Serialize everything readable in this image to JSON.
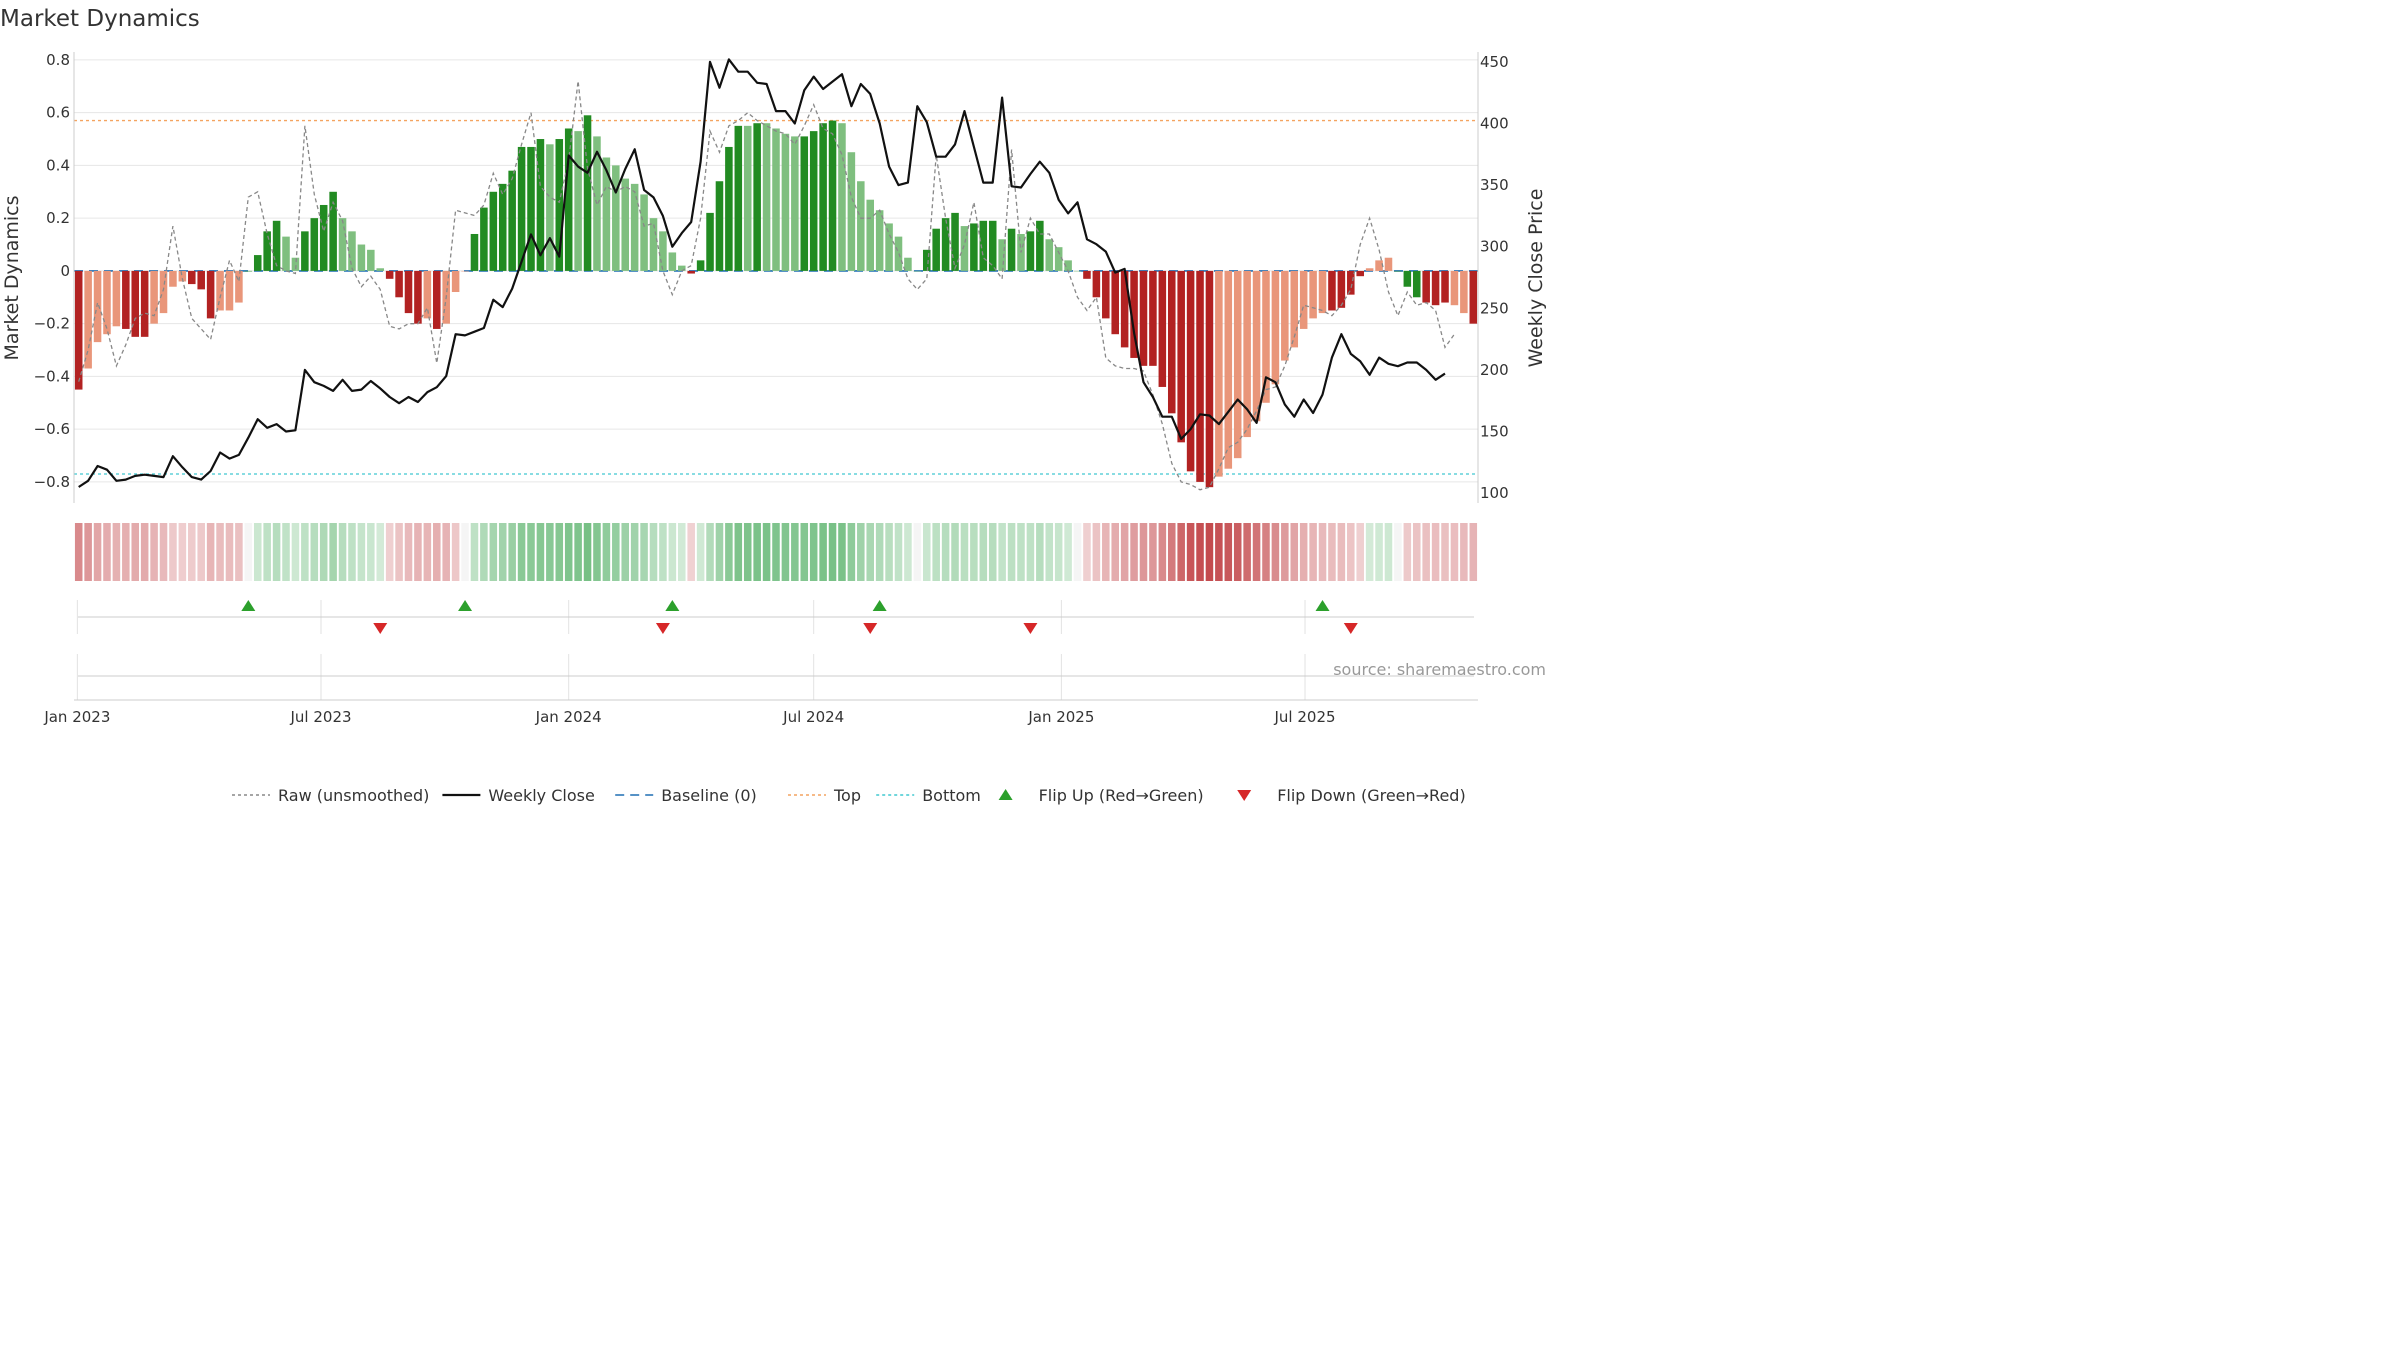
{
  "title": "Market Dynamics",
  "source": "source: sharemaestro.com",
  "colors": {
    "strong_green": "#228B22",
    "light_green": "#7FBF7F",
    "strong_red": "#B22222",
    "light_red": "#E9967A",
    "raw": "#888888",
    "close": "#111111",
    "baseline": "#1f6fb4",
    "top": "#F4A460",
    "bottom": "#40C8D0",
    "flip_up": "#2ca02c",
    "flip_down": "#d62728"
  },
  "chart_data": {
    "type": "bar",
    "x_start": "2023-01-02",
    "x_step_days": 7,
    "xtick_labels": [
      "Jan 2023",
      "Jul 2023",
      "Jan 2024",
      "Jul 2024",
      "Jan 2025",
      "Jul 2025"
    ],
    "xtick_dates": [
      "2023-01-01",
      "2023-07-01",
      "2024-01-01",
      "2024-07-01",
      "2025-01-01",
      "2025-07-01"
    ],
    "ylabel": "Market Dynamics",
    "y2label": "Weekly Close Price",
    "ylim": [
      -0.88,
      0.83
    ],
    "y2lim": [
      92,
      458
    ],
    "yticks": [
      "0.8",
      "0.6",
      "0.4",
      "0.2",
      "0",
      "−0.2",
      "−0.4",
      "−0.6",
      "−0.8"
    ],
    "y2ticks": [
      "450",
      "400",
      "350",
      "300",
      "250",
      "200",
      "150",
      "100"
    ],
    "top": 0.57,
    "bottom": -0.77,
    "baseline": 0,
    "grid": true,
    "legend_position": "bottom",
    "series": [
      {
        "name": "Market Dynamics",
        "values": [
          -0.45,
          -0.37,
          -0.27,
          -0.24,
          -0.21,
          -0.22,
          -0.25,
          -0.25,
          -0.2,
          -0.16,
          -0.06,
          -0.04,
          -0.05,
          -0.07,
          -0.18,
          -0.15,
          -0.15,
          -0.12,
          0,
          0.06,
          0.15,
          0.19,
          0.13,
          0.05,
          0.15,
          0.2,
          0.25,
          0.3,
          0.2,
          0.15,
          0.1,
          0.08,
          0.01,
          -0.03,
          -0.1,
          -0.16,
          -0.2,
          -0.18,
          -0.22,
          -0.2,
          -0.08,
          0,
          0.14,
          0.24,
          0.3,
          0.33,
          0.38,
          0.47,
          0.47,
          0.5,
          0.48,
          0.5,
          0.54,
          0.53,
          0.59,
          0.51,
          0.43,
          0.4,
          0.35,
          0.33,
          0.29,
          0.2,
          0.15,
          0.07,
          0.02,
          -0.01,
          0.04,
          0.22,
          0.34,
          0.47,
          0.55,
          0.55,
          0.56,
          0.56,
          0.54,
          0.52,
          0.51,
          0.51,
          0.53,
          0.56,
          0.57,
          0.56,
          0.45,
          0.34,
          0.27,
          0.23,
          0.18,
          0.13,
          0.05,
          0,
          0.08,
          0.16,
          0.2,
          0.22,
          0.17,
          0.18,
          0.19,
          0.19,
          0.12,
          0.16,
          0.14,
          0.15,
          0.19,
          0.12,
          0.09,
          0.04,
          0,
          -0.03,
          -0.1,
          -0.18,
          -0.24,
          -0.29,
          -0.33,
          -0.36,
          -0.36,
          -0.44,
          -0.54,
          -0.65,
          -0.76,
          -0.8,
          -0.82,
          -0.78,
          -0.75,
          -0.71,
          -0.63,
          -0.57,
          -0.5,
          -0.43,
          -0.34,
          -0.29,
          -0.22,
          -0.18,
          -0.16,
          -0.15,
          -0.14,
          -0.09,
          -0.02,
          0.01,
          0.04,
          0.05,
          0,
          -0.06,
          -0.1,
          -0.12,
          -0.13,
          -0.12,
          -0.13,
          -0.16,
          -0.2
        ],
        "colors": [
          "strong_red",
          "light_red",
          "light_red",
          "light_red",
          "light_red",
          "strong_red",
          "strong_red",
          "strong_red",
          "light_red",
          "light_red",
          "light_red",
          "light_red",
          "strong_red",
          "strong_red",
          "strong_red",
          "light_red",
          "light_red",
          "light_red",
          "strong_green",
          "strong_green",
          "strong_green",
          "strong_green",
          "light_green",
          "light_green",
          "strong_green",
          "strong_green",
          "strong_green",
          "strong_green",
          "light_green",
          "light_green",
          "light_green",
          "light_green",
          "light_green",
          "strong_red",
          "strong_red",
          "strong_red",
          "strong_red",
          "light_red",
          "strong_red",
          "light_red",
          "light_red",
          "light_red",
          "strong_green",
          "strong_green",
          "strong_green",
          "strong_green",
          "strong_green",
          "strong_green",
          "strong_green",
          "strong_green",
          "light_green",
          "strong_green",
          "strong_green",
          "light_green",
          "strong_green",
          "light_green",
          "light_green",
          "light_green",
          "light_green",
          "light_green",
          "light_green",
          "light_green",
          "light_green",
          "light_green",
          "light_green",
          "strong_red",
          "strong_green",
          "strong_green",
          "strong_green",
          "strong_green",
          "strong_green",
          "light_green",
          "strong_green",
          "light_green",
          "light_green",
          "light_green",
          "light_green",
          "strong_green",
          "strong_green",
          "strong_green",
          "strong_green",
          "light_green",
          "light_green",
          "light_green",
          "light_green",
          "light_green",
          "light_green",
          "light_green",
          "light_green",
          "light_green",
          "strong_green",
          "strong_green",
          "strong_green",
          "strong_green",
          "light_green",
          "strong_green",
          "strong_green",
          "strong_green",
          "light_green",
          "strong_green",
          "light_green",
          "strong_green",
          "strong_green",
          "light_green",
          "light_green",
          "light_green",
          "light_green",
          "strong_red",
          "strong_red",
          "strong_red",
          "strong_red",
          "strong_red",
          "strong_red",
          "strong_red",
          "strong_red",
          "strong_red",
          "strong_red",
          "strong_red",
          "strong_red",
          "strong_red",
          "strong_red",
          "light_red",
          "light_red",
          "light_red",
          "light_red",
          "light_red",
          "light_red",
          "light_red",
          "light_red",
          "light_red",
          "light_red",
          "light_red",
          "light_red",
          "strong_red",
          "strong_red",
          "strong_red",
          "strong_red",
          "light_red",
          "light_red",
          "light_red",
          "strong_green",
          "strong_green",
          "strong_green",
          "strong_red",
          "strong_red",
          "strong_red",
          "light_red",
          "light_red",
          "strong_red",
          "strong_red",
          "strong_red"
        ]
      },
      {
        "name": "Raw (unsmoothed)",
        "values": [
          -0.42,
          -0.3,
          -0.12,
          -0.22,
          -0.36,
          -0.28,
          -0.18,
          -0.16,
          -0.17,
          -0.07,
          0.17,
          -0.03,
          -0.18,
          -0.22,
          -0.26,
          -0.1,
          0.04,
          -0.04,
          0.28,
          0.3,
          0.14,
          0.02,
          0,
          -0.01,
          0.55,
          0.29,
          0.15,
          0.26,
          0.19,
          0.01,
          -0.06,
          -0.02,
          -0.07,
          -0.21,
          -0.22,
          -0.2,
          -0.2,
          -0.14,
          -0.35,
          -0.1,
          0.23,
          0.22,
          0.21,
          0.25,
          0.37,
          0.29,
          0.35,
          0.48,
          0.6,
          0.32,
          0.28,
          0.26,
          0.42,
          0.72,
          0.39,
          0.25,
          0.32,
          0.3,
          0.32,
          0.3,
          0.17,
          0.18,
          0.0,
          -0.09,
          0.0,
          0.02,
          0.2,
          0.53,
          0.45,
          0.55,
          0.57,
          0.6,
          0.57,
          0.55,
          0.53,
          0.52,
          0.48,
          0.55,
          0.63,
          0.54,
          0.52,
          0.44,
          0.28,
          0.2,
          0.2,
          0.23,
          0.14,
          0.07,
          -0.03,
          -0.07,
          -0.03,
          0.44,
          0.2,
          0.01,
          0.1,
          0.26,
          0.05,
          0.02,
          -0.03,
          0.46,
          0.07,
          0.2,
          0.14,
          0.14,
          0.07,
          0.0,
          -0.1,
          -0.15,
          -0.1,
          -0.33,
          -0.36,
          -0.37,
          -0.37,
          -0.38,
          -0.47,
          -0.58,
          -0.73,
          -0.8,
          -0.81,
          -0.83,
          -0.82,
          -0.75,
          -0.67,
          -0.65,
          -0.6,
          -0.53,
          -0.45,
          -0.44,
          -0.36,
          -0.25,
          -0.13,
          -0.14,
          -0.15,
          -0.17,
          -0.13,
          -0.07,
          0.1,
          0.2,
          0.08,
          -0.08,
          -0.17,
          -0.08,
          -0.13,
          -0.12,
          -0.15,
          -0.29,
          -0.24
        ]
      },
      {
        "name": "Weekly Close",
        "axis": "right",
        "values": [
          105,
          110,
          122,
          119,
          110,
          111,
          114,
          115,
          114,
          113,
          130,
          121,
          113,
          111,
          118,
          133,
          128,
          131,
          145,
          160,
          153,
          156,
          150,
          151,
          200,
          190,
          187,
          183,
          192,
          183,
          184,
          191,
          185,
          178,
          173,
          178,
          174,
          182,
          186,
          195,
          229,
          228,
          231,
          234,
          257,
          251,
          266,
          288,
          310,
          293,
          307,
          292,
          374,
          365,
          360,
          377,
          362,
          344,
          363,
          379,
          346,
          340,
          325,
          300,
          311,
          320,
          369,
          450,
          429,
          452,
          442,
          442,
          433,
          432,
          410,
          410,
          400,
          427,
          438,
          428,
          434,
          440,
          414,
          432,
          424,
          400,
          365,
          350,
          352,
          414,
          401,
          373,
          373,
          383,
          410,
          381,
          352,
          352,
          421,
          349,
          348,
          359,
          369,
          360,
          338,
          327,
          336,
          306,
          302,
          296,
          279,
          282,
          230,
          190,
          178,
          162,
          162,
          144,
          152,
          164,
          163,
          156,
          166,
          176,
          168,
          157,
          194,
          190,
          172,
          162,
          176,
          165,
          180,
          210,
          229,
          213,
          207,
          196,
          210,
          205,
          203,
          206,
          206,
          200,
          192,
          197
        ]
      }
    ],
    "ribbon_values": [
      -0.45,
      -0.37,
      -0.27,
      -0.24,
      -0.21,
      -0.22,
      -0.25,
      -0.25,
      -0.2,
      -0.16,
      -0.06,
      -0.04,
      -0.05,
      -0.07,
      -0.18,
      -0.15,
      -0.15,
      -0.12,
      0.0,
      0.06,
      0.15,
      0.19,
      0.13,
      0.05,
      0.15,
      0.2,
      0.25,
      0.3,
      0.2,
      0.15,
      0.1,
      0.08,
      0.01,
      -0.03,
      -0.1,
      -0.16,
      -0.2,
      -0.18,
      -0.22,
      -0.2,
      -0.08,
      0.0,
      0.14,
      0.24,
      0.3,
      0.33,
      0.38,
      0.47,
      0.47,
      0.5,
      0.48,
      0.5,
      0.54,
      0.53,
      0.59,
      0.51,
      0.43,
      0.4,
      0.35,
      0.33,
      0.29,
      0.2,
      0.15,
      0.07,
      0.02,
      -0.01,
      0.04,
      0.22,
      0.34,
      0.47,
      0.55,
      0.55,
      0.56,
      0.56,
      0.54,
      0.52,
      0.51,
      0.51,
      0.53,
      0.56,
      0.57,
      0.56,
      0.45,
      0.34,
      0.27,
      0.23,
      0.18,
      0.13,
      0.05,
      0.0,
      0.08,
      0.16,
      0.2,
      0.22,
      0.17,
      0.18,
      0.19,
      0.19,
      0.12,
      0.16,
      0.14,
      0.15,
      0.19,
      0.12,
      0.09,
      0.04,
      0.0,
      -0.03,
      -0.1,
      -0.18,
      -0.24,
      -0.29,
      -0.33,
      -0.36,
      -0.36,
      -0.44,
      -0.54,
      -0.65,
      -0.76,
      -0.8,
      -0.82,
      -0.78,
      -0.75,
      -0.71,
      -0.63,
      -0.57,
      -0.5,
      -0.43,
      -0.34,
      -0.29,
      -0.22,
      -0.18,
      -0.16,
      -0.15,
      -0.14,
      -0.09,
      -0.02,
      0.01,
      0.04,
      0.05,
      0.0,
      -0.06,
      -0.1,
      -0.12,
      -0.13,
      -0.12,
      -0.13,
      -0.16,
      -0.2
    ],
    "flips": {
      "up_dates": [
        "2023-05-08",
        "2023-10-16",
        "2024-03-18",
        "2024-08-19",
        "2025-07-14"
      ],
      "down_dates": [
        "2023-08-14",
        "2024-03-11",
        "2024-08-12",
        "2024-12-09",
        "2025-08-04"
      ]
    },
    "legend": [
      {
        "label": "Raw (unsmoothed)",
        "style": "dotted",
        "color": "raw"
      },
      {
        "label": "Weekly Close",
        "style": "solid",
        "color": "close"
      },
      {
        "label": "Baseline (0)",
        "style": "dashed",
        "color": "baseline"
      },
      {
        "label": "Top",
        "style": "dotted",
        "color": "top"
      },
      {
        "label": "Bottom",
        "style": "dotted",
        "color": "bottom"
      },
      {
        "label": "Flip Up (Red→Green)",
        "style": "triangle-up",
        "color": "flip_up"
      },
      {
        "label": "Flip Down (Green→Red)",
        "style": "triangle-down",
        "color": "flip_down"
      }
    ]
  }
}
